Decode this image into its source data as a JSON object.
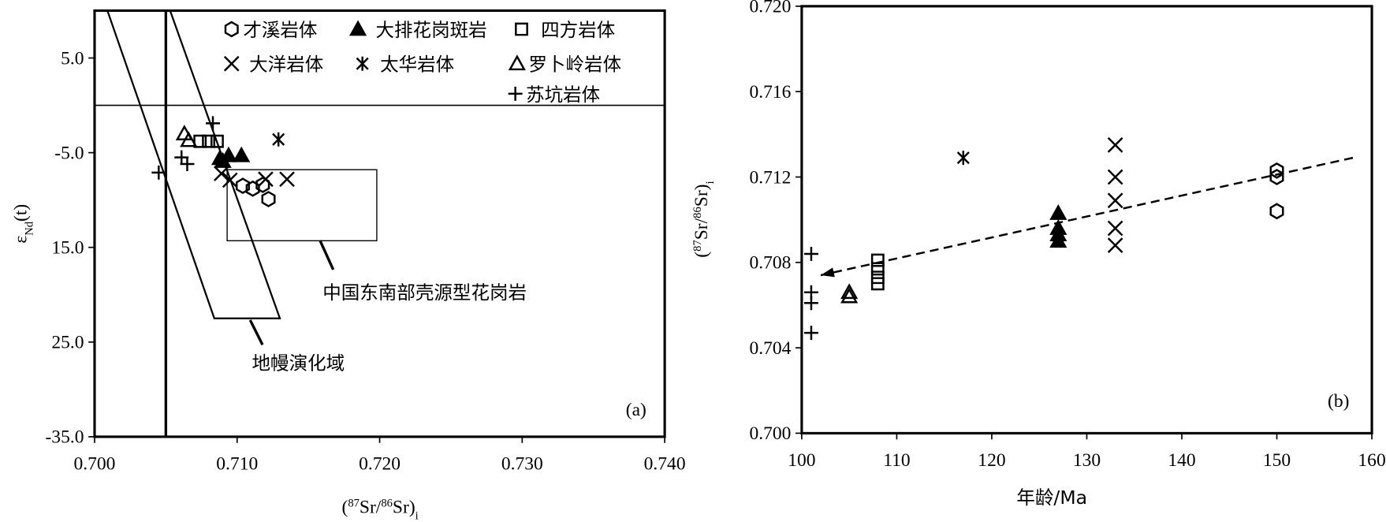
{
  "chart_data": [
    {
      "type": "scatter",
      "panel": "(a)",
      "xlabel": [
        {
          "text": "("
        },
        {
          "text": "87",
          "shift": "sup"
        },
        {
          "text": "Sr/"
        },
        {
          "text": "86",
          "shift": "sup"
        },
        {
          "text": "Sr)"
        },
        {
          "text": "i",
          "shift": "sub"
        }
      ],
      "ylabel": [
        {
          "text": "ε"
        },
        {
          "text": "Nd",
          "shift": "sub"
        },
        {
          "text": "(t)"
        }
      ],
      "xlim": [
        0.7,
        0.74
      ],
      "xticks": [
        {
          "value": 0.7,
          "label": "0.700"
        },
        {
          "value": 0.71,
          "label": "0.710"
        },
        {
          "value": 0.72,
          "label": "0.720"
        },
        {
          "value": 0.73,
          "label": "0.730"
        },
        {
          "value": 0.74,
          "label": "0.740"
        }
      ],
      "ylim": [
        -35,
        10
      ],
      "yticks": [
        {
          "value": 5,
          "label": "5.0"
        },
        {
          "value": -5,
          "label": "-5.0"
        },
        {
          "value": -15,
          "label": "15.0"
        },
        {
          "value": -25,
          "label": "25.0"
        },
        {
          "value": -35,
          "label": "-35.0"
        }
      ],
      "series": [
        {
          "name": "才溪岩体",
          "marker": "hexagon",
          "color": "#000000",
          "x": [
            0.7104,
            0.7111,
            0.7118,
            0.7122
          ],
          "y": [
            -8.5,
            -8.8,
            -8.4,
            -9.9
          ]
        },
        {
          "name": "大排花岗斑岩",
          "marker": "triangle-filled",
          "color": "#000000",
          "x": [
            0.7088,
            0.7094,
            0.7103,
            0.709
          ],
          "y": [
            -5.6,
            -5.3,
            -5.3,
            -5.9
          ]
        },
        {
          "name": "四方岩体",
          "marker": "square",
          "color": "#000000",
          "x": [
            0.7074,
            0.708,
            0.7086
          ],
          "y": [
            -3.8,
            -3.8,
            -3.8
          ]
        },
        {
          "name": "大洋岩体",
          "marker": "cross",
          "color": "#000000",
          "x": [
            0.7089,
            0.7095,
            0.712,
            0.7135
          ],
          "y": [
            -7.2,
            -7.9,
            -7.8,
            -7.8
          ]
        },
        {
          "name": "太华岩体",
          "marker": "asterisk",
          "color": "#000000",
          "x": [
            0.7129
          ],
          "y": [
            -3.6
          ]
        },
        {
          "name": "罗卜岭岩体",
          "marker": "triangle-open",
          "color": "#000000",
          "x": [
            0.7063,
            0.7066
          ],
          "y": [
            -3.0,
            -3.7
          ]
        },
        {
          "name": "苏坑岩体",
          "marker": "plus",
          "color": "#000000",
          "x": [
            0.7045,
            0.7061,
            0.7065,
            0.7083
          ],
          "y": [
            -7.1,
            -5.5,
            -6.2,
            -1.9
          ]
        }
      ],
      "reference_lines": [
        {
          "x": 0.705
        },
        {
          "y": 0
        }
      ],
      "regions": [
        {
          "x": [
            0.7009,
            0.7053,
            0.713,
            0.7084
          ],
          "y": [
            10,
            10,
            -22.5,
            -22.5
          ]
        },
        {
          "x": [
            0.7093,
            0.7198,
            0.7198,
            0.7093
          ],
          "y": [
            -6.8,
            -6.8,
            -14.3,
            -14.3
          ]
        }
      ],
      "annotations": [
        "中国东南部壳源型花岗岩",
        "地幔演化域"
      ]
    },
    {
      "type": "scatter",
      "panel": "(b)",
      "xlabel": [
        {
          "text": "年龄/Ma"
        }
      ],
      "ylabel": [
        {
          "text": "("
        },
        {
          "text": "87",
          "shift": "sup"
        },
        {
          "text": "Sr/"
        },
        {
          "text": "86",
          "shift": "sup"
        },
        {
          "text": "Sr)"
        },
        {
          "text": "i",
          "shift": "sub"
        }
      ],
      "xlim": [
        100,
        160
      ],
      "xticks": [
        100,
        110,
        120,
        130,
        140,
        150,
        160
      ],
      "ylim": [
        0.7,
        0.72
      ],
      "yticks": [
        {
          "value": 0.7,
          "label": "0.700"
        },
        {
          "value": 0.704,
          "label": "0.704"
        },
        {
          "value": 0.708,
          "label": "0.708"
        },
        {
          "value": 0.712,
          "label": "0.712"
        },
        {
          "value": 0.716,
          "label": "0.716"
        },
        {
          "value": 0.72,
          "label": "0.720"
        }
      ],
      "series": [
        {
          "marker": "hexagon",
          "color": "#000000",
          "x": [
            150,
            150,
            150
          ],
          "y": [
            0.7123,
            0.712,
            0.7104
          ]
        },
        {
          "marker": "triangle-filled",
          "color": "#000000",
          "x": [
            127,
            127,
            127,
            127
          ],
          "y": [
            0.7103,
            0.7096,
            0.7093,
            0.709
          ]
        },
        {
          "marker": "square",
          "color": "#000000",
          "x": [
            108,
            108,
            108,
            108
          ],
          "y": [
            0.7081,
            0.7077,
            0.7073,
            0.707
          ]
        },
        {
          "marker": "cross",
          "color": "#000000",
          "x": [
            133,
            133,
            133,
            133,
            133
          ],
          "y": [
            0.7135,
            0.712,
            0.7109,
            0.7096,
            0.7088
          ]
        },
        {
          "marker": "asterisk",
          "color": "#000000",
          "x": [
            117
          ],
          "y": [
            0.7129
          ]
        },
        {
          "marker": "triangle-open",
          "color": "#000000",
          "x": [
            105,
            105
          ],
          "y": [
            0.7066,
            0.7064
          ]
        },
        {
          "marker": "plus",
          "color": "#000000",
          "x": [
            101,
            101,
            101,
            101
          ],
          "y": [
            0.7084,
            0.7066,
            0.7061,
            0.7047
          ]
        }
      ],
      "trend": {
        "x": [
          158,
          102
        ],
        "y": [
          0.7129,
          0.7074
        ]
      }
    }
  ]
}
